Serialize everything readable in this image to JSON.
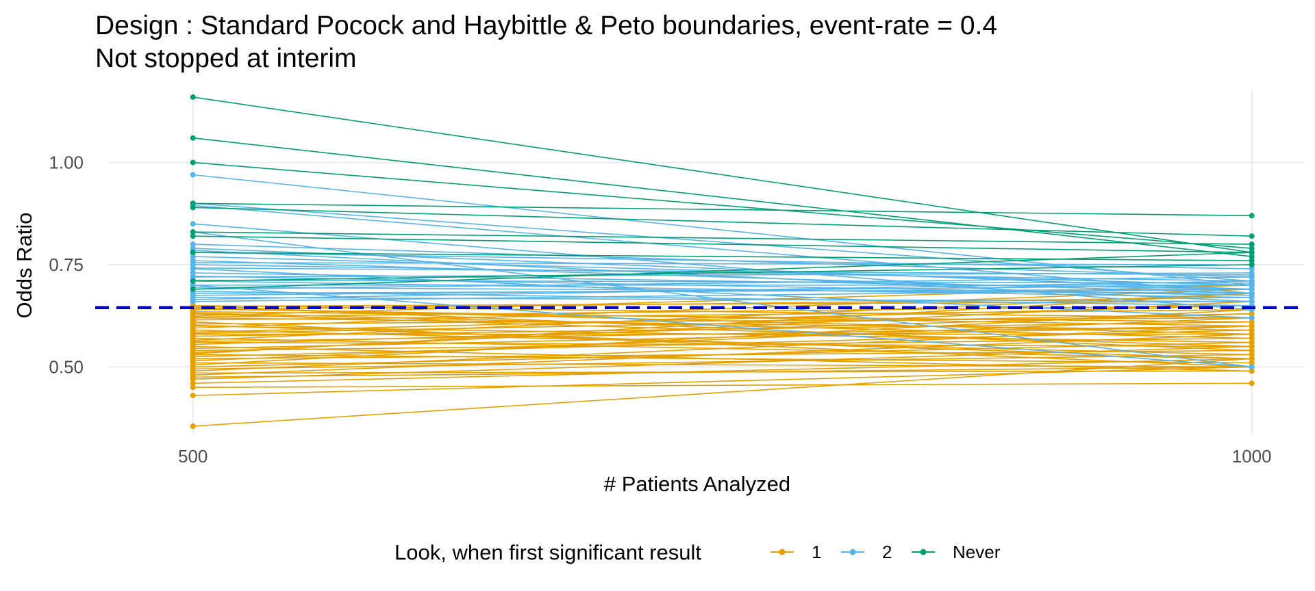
{
  "chart_data": {
    "type": "line",
    "title": "Design : Standard Pocock and Haybittle & Peto boundaries, event-rate = 0.4",
    "subtitle": "Not stopped at interim",
    "xlabel": "# Patients Analyzed",
    "ylabel": "Odds Ratio",
    "x": [
      500,
      1000
    ],
    "x_ticks": [
      "500",
      "1000"
    ],
    "y_ticks": [
      "0.50",
      "0.75",
      "1.00"
    ],
    "y_tick_values": [
      0.5,
      0.75,
      1.0
    ],
    "xlim": [
      460,
      1025
    ],
    "ylim": [
      0.335,
      1.18
    ],
    "grid": true,
    "reference_line": {
      "y": 0.645,
      "color": "#0000cc",
      "style": "dashed"
    },
    "legend": {
      "title": "Look, when first significant result",
      "position": "bottom",
      "entries": [
        {
          "label": "1",
          "color": "#E69F00"
        },
        {
          "label": "2",
          "color": "#56B4E9"
        },
        {
          "label": "Never",
          "color": "#009E73"
        }
      ]
    },
    "series": [
      {
        "name": "1",
        "color": "#E69F00",
        "pairs": [
          [
            0.355,
            0.52
          ],
          [
            0.43,
            0.5
          ],
          [
            0.45,
            0.46
          ],
          [
            0.46,
            0.52
          ],
          [
            0.47,
            0.55
          ],
          [
            0.475,
            0.5
          ],
          [
            0.48,
            0.58
          ],
          [
            0.485,
            0.49
          ],
          [
            0.49,
            0.6
          ],
          [
            0.495,
            0.53
          ],
          [
            0.5,
            0.56
          ],
          [
            0.505,
            0.64
          ],
          [
            0.51,
            0.5
          ],
          [
            0.515,
            0.62
          ],
          [
            0.52,
            0.54
          ],
          [
            0.525,
            0.59
          ],
          [
            0.53,
            0.51
          ],
          [
            0.535,
            0.66
          ],
          [
            0.54,
            0.57
          ],
          [
            0.545,
            0.6
          ],
          [
            0.55,
            0.49
          ],
          [
            0.555,
            0.63
          ],
          [
            0.56,
            0.55
          ],
          [
            0.565,
            0.68
          ],
          [
            0.57,
            0.52
          ],
          [
            0.575,
            0.61
          ],
          [
            0.58,
            0.58
          ],
          [
            0.585,
            0.65
          ],
          [
            0.59,
            0.53
          ],
          [
            0.595,
            0.69
          ],
          [
            0.6,
            0.56
          ],
          [
            0.605,
            0.62
          ],
          [
            0.61,
            0.5
          ],
          [
            0.615,
            0.64
          ],
          [
            0.62,
            0.59
          ],
          [
            0.625,
            0.7
          ],
          [
            0.63,
            0.55
          ],
          [
            0.635,
            0.61
          ],
          [
            0.64,
            0.67
          ],
          [
            0.645,
            0.58
          ],
          [
            0.65,
            0.62
          ],
          [
            0.65,
            0.54
          ],
          [
            0.648,
            0.66
          ],
          [
            0.642,
            0.6
          ],
          [
            0.632,
            0.57
          ],
          [
            0.622,
            0.65
          ],
          [
            0.602,
            0.52
          ],
          [
            0.582,
            0.63
          ],
          [
            0.562,
            0.6
          ],
          [
            0.532,
            0.68
          ]
        ]
      },
      {
        "name": "2",
        "color": "#56B4E9",
        "pairs": [
          [
            0.97,
            0.7
          ],
          [
            0.9,
            0.71
          ],
          [
            0.895,
            0.68
          ],
          [
            0.85,
            0.64
          ],
          [
            0.83,
            0.5
          ],
          [
            0.8,
            0.72
          ],
          [
            0.79,
            0.69
          ],
          [
            0.785,
            0.66
          ],
          [
            0.78,
            0.74
          ],
          [
            0.77,
            0.7
          ],
          [
            0.76,
            0.68
          ],
          [
            0.75,
            0.71
          ],
          [
            0.74,
            0.62
          ],
          [
            0.73,
            0.69
          ],
          [
            0.72,
            0.73
          ],
          [
            0.71,
            0.67
          ],
          [
            0.7,
            0.7
          ],
          [
            0.695,
            0.68
          ],
          [
            0.69,
            0.72
          ],
          [
            0.685,
            0.65
          ],
          [
            0.68,
            0.69
          ],
          [
            0.675,
            0.7
          ],
          [
            0.67,
            0.66
          ],
          [
            0.665,
            0.71
          ],
          [
            0.66,
            0.69
          ],
          [
            0.7,
            0.5
          ],
          [
            0.755,
            0.75
          ],
          [
            0.712,
            0.705
          ],
          [
            0.722,
            0.675
          ],
          [
            0.742,
            0.725
          ]
        ]
      },
      {
        "name": "Never",
        "color": "#009E73",
        "pairs": [
          [
            1.16,
            0.78
          ],
          [
            1.06,
            0.77
          ],
          [
            1.0,
            0.79
          ],
          [
            0.9,
            0.87
          ],
          [
            0.89,
            0.82
          ],
          [
            0.83,
            0.8
          ],
          [
            0.82,
            0.78
          ],
          [
            0.78,
            0.76
          ],
          [
            0.71,
            0.75
          ],
          [
            0.69,
            0.78
          ]
        ]
      }
    ]
  }
}
